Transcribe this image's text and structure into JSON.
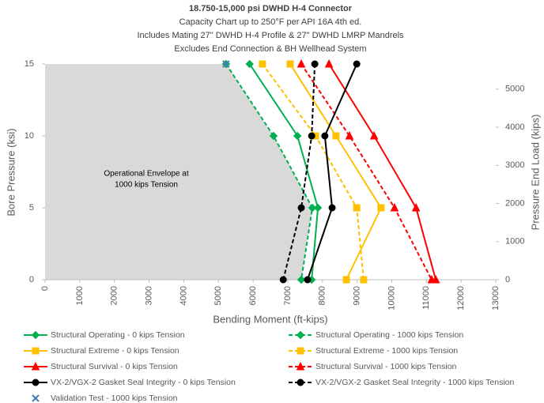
{
  "chart_data": {
    "type": "line",
    "title": "18.750-15,000 psi DWHD H-4 Connector",
    "subtitle": [
      "Capacity Chart up to 250°F per API 16A 4th ed.",
      "Includes Mating 27\" DWHD H-4 Profile & 27\" DWHD LMRP Mandrels",
      "Excludes End Connection & BH Wellhead System"
    ],
    "x_label": "Bending Moment (ft-kips)",
    "y_label": "Bore Pressure (ksi)",
    "y2_label": "Pressure End Load (kips)",
    "annotation": [
      "Operational Envelope at",
      "1000 kips Tension"
    ],
    "envelope_color": "#d9d9d9",
    "xlim": [
      0,
      13000
    ],
    "xticks": [
      0,
      1000,
      2000,
      3000,
      4000,
      5000,
      6000,
      7000,
      8000,
      9000,
      10000,
      11000,
      12000,
      13000
    ],
    "ylim": [
      0,
      15
    ],
    "yticks": [
      0,
      5,
      10,
      15
    ],
    "y2lim": [
      0,
      5660
    ],
    "y2ticks": [
      0,
      1000,
      2000,
      3000,
      4000,
      5000
    ],
    "grid": false,
    "series": [
      {
        "name": "Structural Operating - 0 kips Tension",
        "color": "#00b050",
        "marker": "diamond",
        "dashed": false,
        "x": [
          5900,
          7280,
          7870,
          7690
        ],
        "values": [
          15,
          10,
          5,
          0
        ]
      },
      {
        "name": "Structural Operating - 1000 kips Tension",
        "color": "#00b050",
        "marker": "diamond",
        "dashed": true,
        "x": [
          5220,
          6590,
          7710,
          7390
        ],
        "values": [
          15,
          10,
          5,
          0
        ]
      },
      {
        "name": "Structural Extreme - 0 kips Tension",
        "color": "#ffc000",
        "marker": "square",
        "dashed": false,
        "x": [
          7070,
          8390,
          9690,
          8690
        ],
        "values": [
          15,
          10,
          5,
          0
        ]
      },
      {
        "name": "Structural Extreme - 1000 kips Tension",
        "color": "#ffc000",
        "marker": "square",
        "dashed": true,
        "x": [
          6270,
          7800,
          8990,
          9190
        ],
        "values": [
          15,
          10,
          5,
          0
        ]
      },
      {
        "name": "Structural Survival - 0 kips Tension",
        "color": "#ff0000",
        "marker": "triangle",
        "dashed": false,
        "x": [
          8190,
          9490,
          10700,
          11270
        ],
        "values": [
          15,
          10,
          5,
          0
        ]
      },
      {
        "name": "Structural Survival - 1000 kips Tension",
        "color": "#ff0000",
        "marker": "triangle",
        "dashed": true,
        "x": [
          7390,
          8780,
          10080,
          11150
        ],
        "values": [
          15,
          10,
          5,
          0
        ]
      },
      {
        "name": "VX-2/VGX-2 Gasket Seal Integrity - 0 kips Tension",
        "color": "#000000",
        "marker": "circle",
        "dashed": false,
        "x": [
          8990,
          8070,
          8280,
          7570
        ],
        "values": [
          15,
          10,
          5,
          0
        ]
      },
      {
        "name": "VX-2/VGX-2 Gasket Seal Integrity - 1000 kips Tension",
        "color": "#000000",
        "marker": "circle",
        "dashed": true,
        "x": [
          7780,
          7690,
          7390,
          6870
        ],
        "values": [
          15,
          10,
          5,
          0
        ]
      },
      {
        "name": "Validation Test - 1000 kips Tension",
        "color": "#4a7ebb",
        "marker": "x",
        "dashed": false,
        "x": [
          5220
        ],
        "values": [
          15
        ]
      }
    ]
  }
}
